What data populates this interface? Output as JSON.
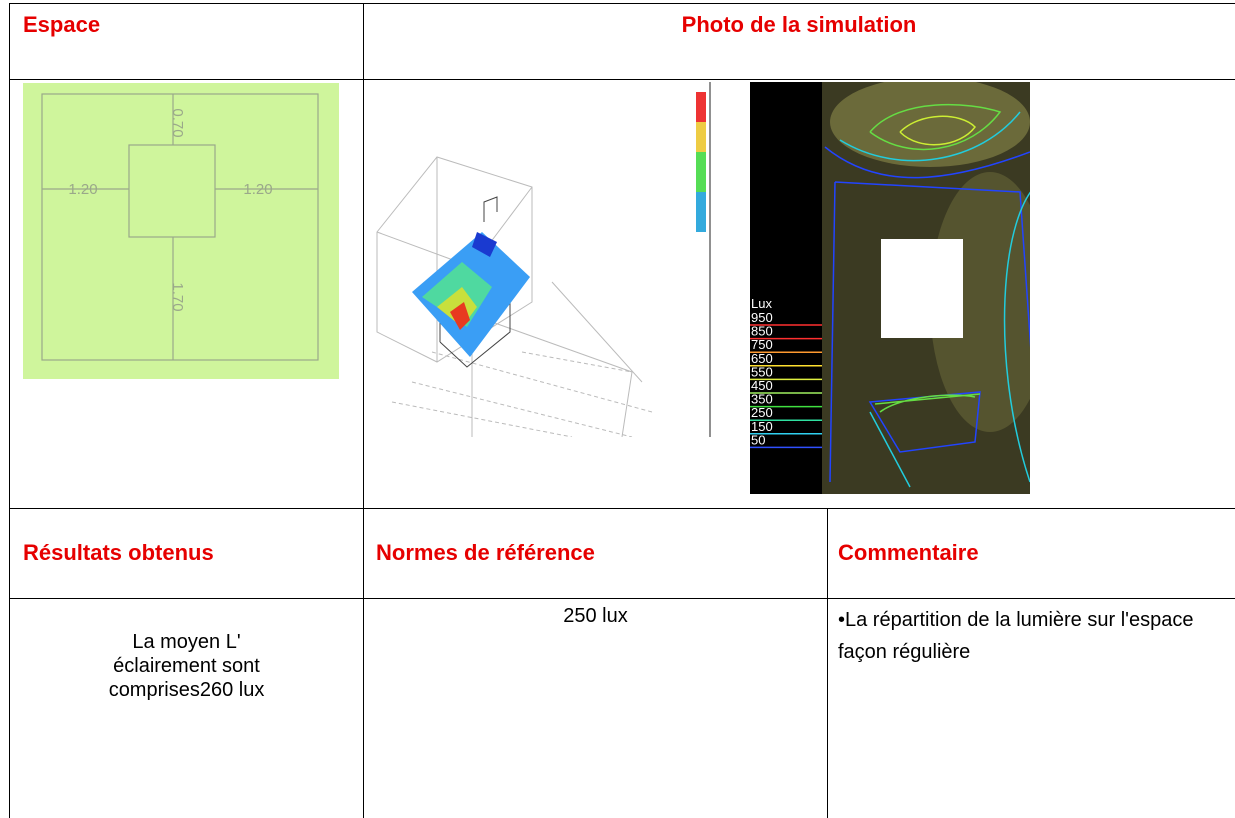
{
  "header": {
    "space": "Espace",
    "photo": "Photo de la simulation"
  },
  "plan": {
    "dimensions": [
      "0.70",
      "1.20",
      "1.20",
      "1.70"
    ]
  },
  "simulation": {
    "legend_title": "Lux",
    "legend": [
      "950",
      "850",
      "750",
      "650",
      "550",
      "450",
      "350",
      "250",
      "150",
      "50"
    ]
  },
  "table": {
    "headers": [
      "Résultats obtenus",
      "Normes de référence",
      "Commentaire"
    ],
    "row": [
      [
        "La moyen L'",
        "éclairement sont",
        "comprises260 lux"
      ],
      "250 lux",
      "•La répartition de la lumière sur l'espace façon régulière"
    ]
  }
}
